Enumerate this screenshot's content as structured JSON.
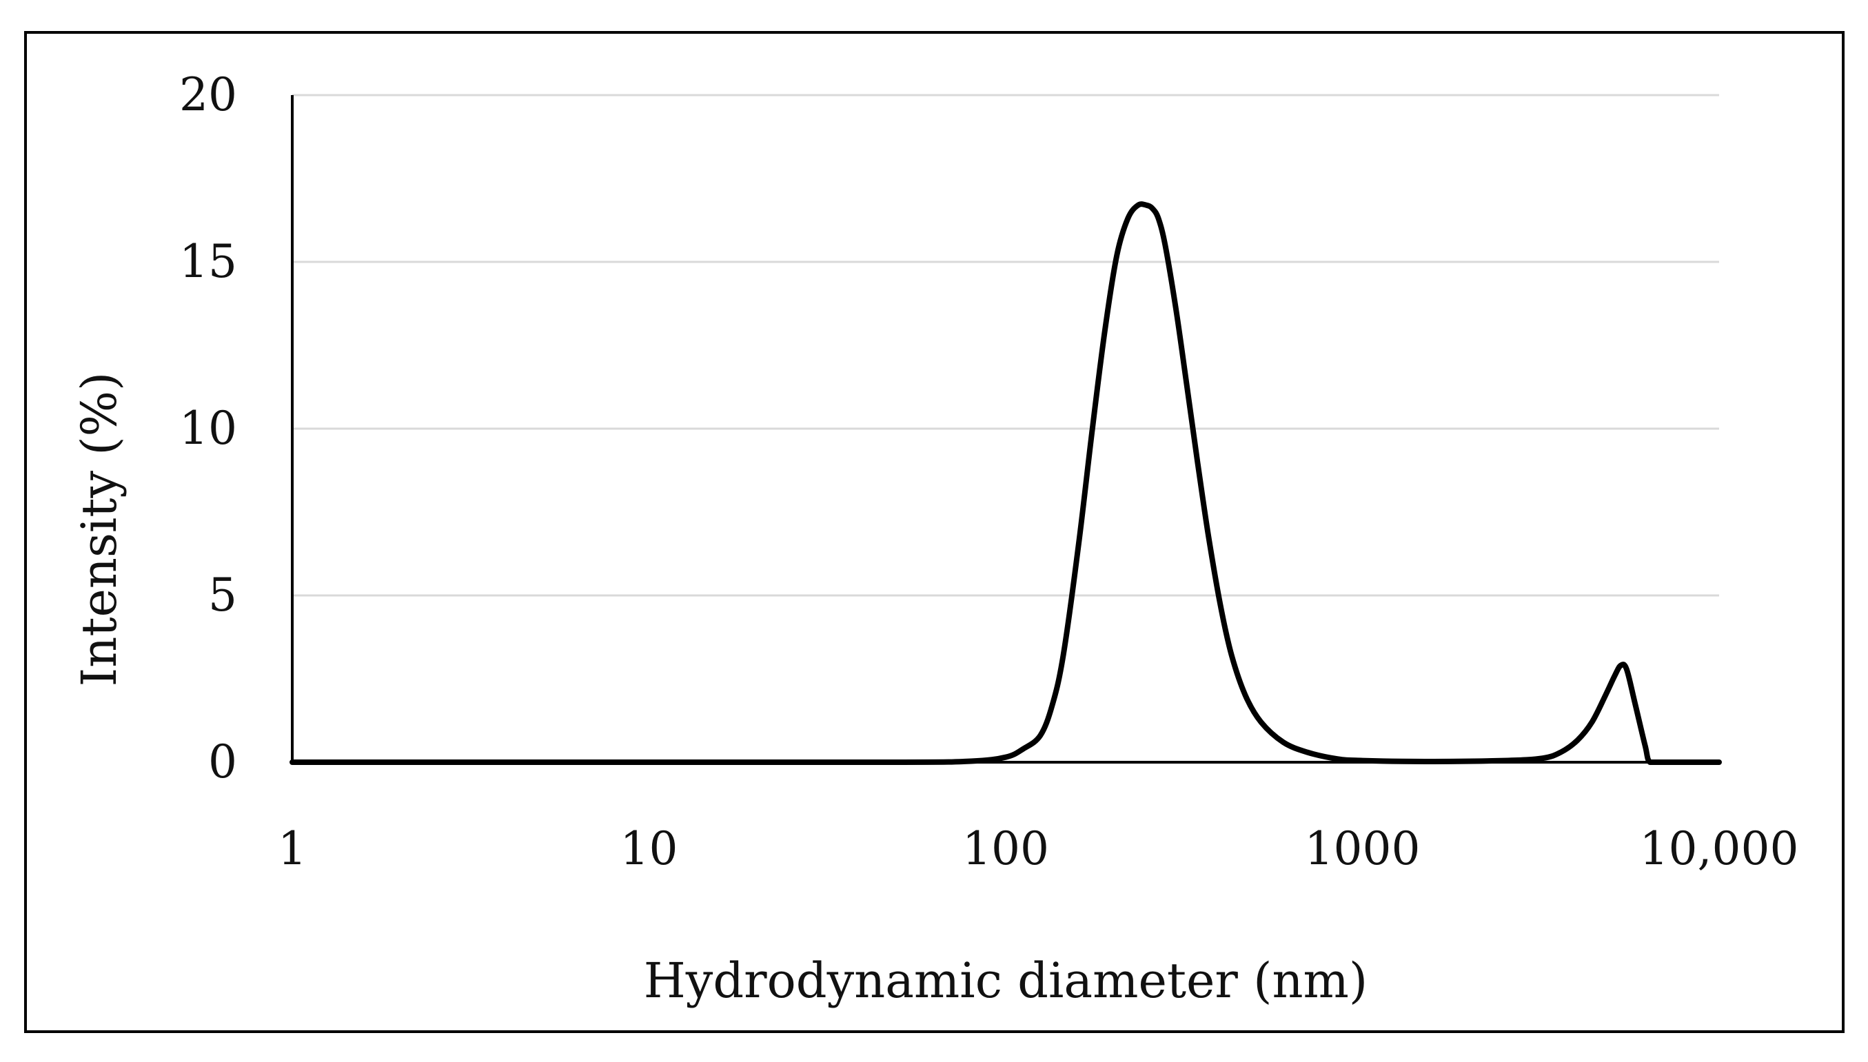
{
  "chart_data": {
    "type": "line",
    "title": "",
    "xlabel": "Hydrodynamic diameter (nm)",
    "ylabel": "Intensity (%)",
    "x_scale": "log",
    "xlim": [
      1,
      10000
    ],
    "ylim": [
      0,
      20
    ],
    "x_ticks": [
      1,
      10,
      100,
      1000,
      10000
    ],
    "x_tick_labels": [
      "1",
      "10",
      "100",
      "1000",
      "10,000"
    ],
    "y_ticks": [
      0,
      5,
      10,
      15,
      20
    ],
    "y_tick_labels": [
      "0",
      "5",
      "10",
      "15",
      "20"
    ],
    "grid": "horizontal",
    "legend": "none",
    "colors": {
      "line": "#000000",
      "grid": "#d9d9d9",
      "axis": "#000000",
      "frame": "#000000"
    },
    "series": [
      {
        "x": [
          1,
          10,
          50,
          80,
          100,
          112,
          125,
          135,
          145,
          160,
          175,
          190,
          205,
          220,
          235,
          248,
          258,
          268,
          280,
          300,
          320,
          345,
          370,
          400,
          430,
          470,
          520,
          600,
          700,
          850,
          1000,
          1500,
          2500,
          3200,
          3600,
          4000,
          4400,
          4800,
          5100,
          5300,
          5500,
          5800,
          6200,
          6400,
          7000,
          10000
        ],
        "y": [
          0,
          0,
          0,
          0.03,
          0.15,
          0.4,
          0.8,
          1.7,
          3.2,
          6.5,
          10.0,
          13.0,
          15.2,
          16.3,
          16.7,
          16.7,
          16.6,
          16.3,
          15.5,
          13.6,
          11.5,
          9.0,
          6.8,
          4.7,
          3.2,
          2.0,
          1.2,
          0.6,
          0.3,
          0.1,
          0.05,
          0.02,
          0.05,
          0.12,
          0.3,
          0.65,
          1.2,
          2.0,
          2.6,
          2.9,
          2.8,
          1.8,
          0.5,
          0,
          0,
          0
        ]
      }
    ]
  }
}
